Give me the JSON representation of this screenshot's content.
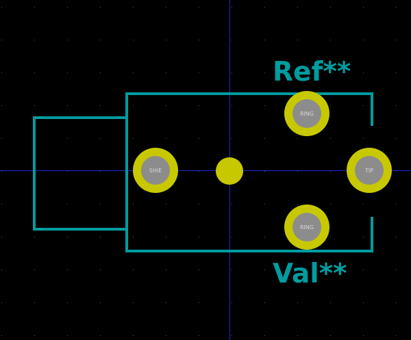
{
  "footprint": {
    "reference": "Ref**",
    "value": "Val**",
    "pads": [
      {
        "label": "SHIE"
      },
      {
        "label": "RING"
      },
      {
        "label": "TIP"
      },
      {
        "label": "RING"
      }
    ]
  },
  "colors": {
    "background": "#000000",
    "silkscreen": "#009ca0",
    "pad_copper": "#c8c800",
    "drill_hole": "#8c8c8c",
    "pad_label": "#d8d8d8",
    "grid_dot": "#5a5a5a",
    "crosshair": "#1a2ad8"
  }
}
